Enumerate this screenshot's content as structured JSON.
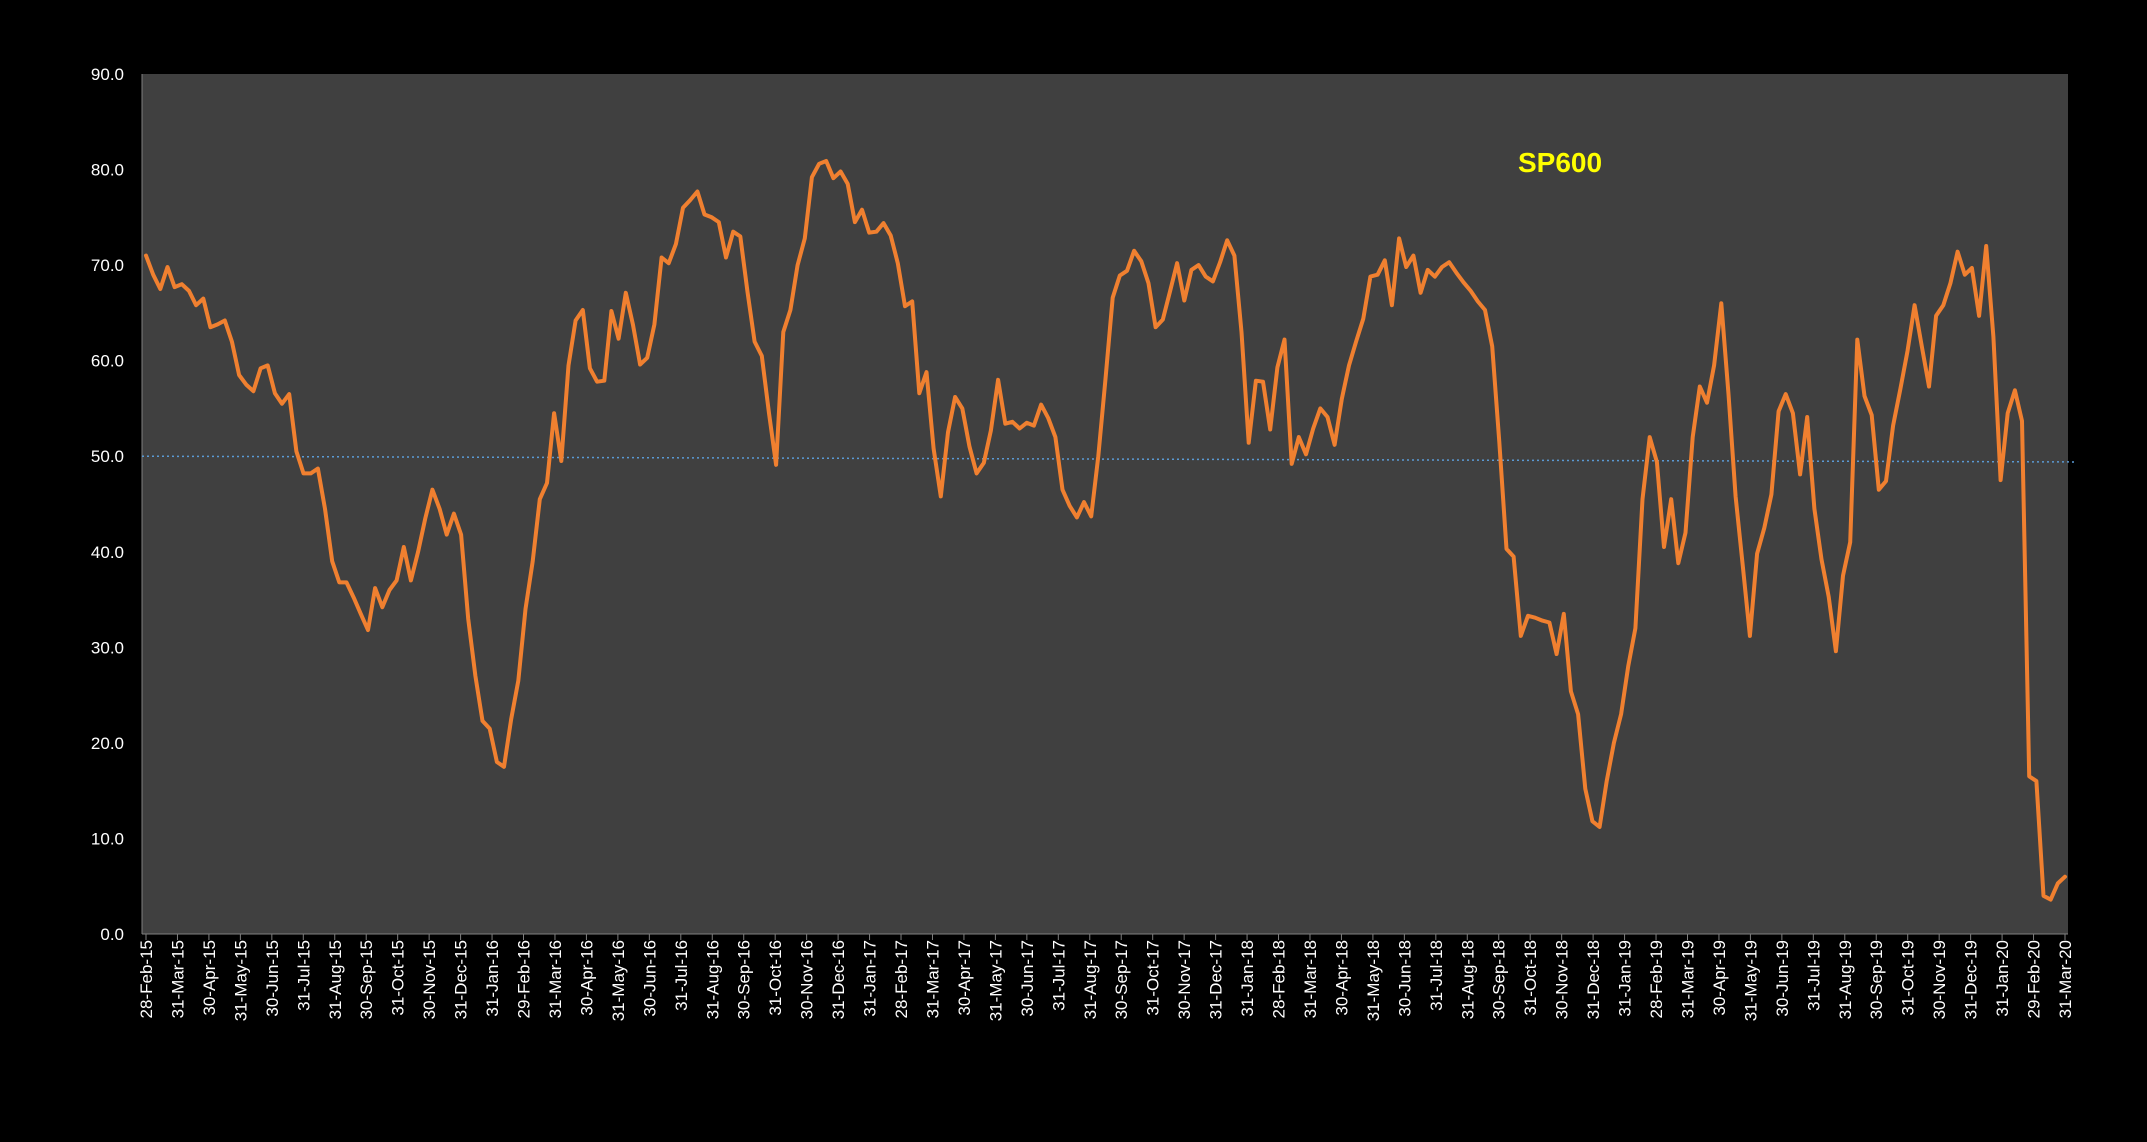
{
  "colors": {
    "page_background": "#000000",
    "plot_background": "#404040",
    "series_line": "#f08030",
    "reference_line": "#5b9bd5",
    "tick_text": "#ffffff",
    "title_text": "#ffff00"
  },
  "chart_data": {
    "type": "line",
    "title": "SP600",
    "xlabel": "",
    "ylabel": "",
    "ylim": [
      0,
      90
    ],
    "y_ticks": [
      "0.0",
      "10.0",
      "20.0",
      "30.0",
      "40.0",
      "50.0",
      "60.0",
      "70.0",
      "80.0",
      "90.0"
    ],
    "grid": false,
    "legend": "none",
    "x_tick_labels": [
      "28-Feb-15",
      "31-Mar-15",
      "30-Apr-15",
      "31-May-15",
      "30-Jun-15",
      "31-Jul-15",
      "31-Aug-15",
      "30-Sep-15",
      "31-Oct-15",
      "30-Nov-15",
      "31-Dec-15",
      "31-Jan-16",
      "29-Feb-16",
      "31-Mar-16",
      "30-Apr-16",
      "31-May-16",
      "30-Jun-16",
      "31-Jul-16",
      "31-Aug-16",
      "30-Sep-16",
      "31-Oct-16",
      "30-Nov-16",
      "31-Dec-16",
      "31-Jan-17",
      "28-Feb-17",
      "31-Mar-17",
      "30-Apr-17",
      "31-May-17",
      "30-Jun-17",
      "31-Jul-17",
      "31-Aug-17",
      "30-Sep-17",
      "31-Oct-17",
      "30-Nov-17",
      "31-Dec-17",
      "31-Jan-18",
      "28-Feb-18",
      "31-Mar-18",
      "30-Apr-18",
      "31-May-18",
      "30-Jun-18",
      "31-Jul-18",
      "31-Aug-18",
      "30-Sep-18",
      "31-Oct-18",
      "30-Nov-18",
      "31-Dec-18",
      "31-Jan-19",
      "28-Feb-19",
      "31-Mar-19",
      "30-Apr-19",
      "31-May-19",
      "30-Jun-19",
      "31-Jul-19",
      "31-Aug-19",
      "30-Sep-19",
      "31-Oct-19",
      "30-Nov-19",
      "31-Dec-19",
      "31-Jan-20",
      "29-Feb-20",
      "31-Mar-20"
    ],
    "reference_line": {
      "y_start": 50.0,
      "y_end": 49.4
    },
    "series": [
      {
        "values": [
          71.0,
          69.0,
          67.5,
          69.8,
          67.7,
          68.0,
          67.3,
          65.8,
          66.5,
          63.5,
          63.8,
          64.2,
          62.0,
          58.5,
          57.5,
          56.8,
          59.2,
          59.5,
          56.6,
          55.5,
          56.5,
          50.5,
          48.2,
          48.2,
          48.7,
          44.5,
          39.0,
          36.8,
          36.8,
          35.2,
          33.5,
          31.8,
          36.2,
          34.2,
          36.0,
          37.0,
          40.5,
          37.0,
          40.0,
          43.5,
          46.5,
          44.5,
          41.8,
          44.0,
          41.8,
          33.0,
          27.0,
          22.3,
          21.5,
          18.0,
          17.5,
          22.5,
          26.5,
          34.0,
          39.0,
          45.5,
          47.2,
          54.5,
          49.5,
          59.5,
          64.2,
          65.3,
          59.2,
          57.8,
          57.9,
          65.2,
          62.3,
          67.1,
          63.8,
          59.6,
          60.3,
          63.8,
          70.8,
          70.2,
          72.2,
          76.0,
          76.8,
          77.7,
          75.3,
          75.0,
          74.5,
          70.8,
          73.5,
          73.0,
          67.2,
          62.0,
          60.5,
          54.5,
          49.1,
          63.0,
          65.3,
          70.0,
          72.8,
          79.2,
          80.6,
          80.9,
          79.1,
          79.8,
          78.5,
          74.5,
          75.8,
          73.4,
          73.5,
          74.4,
          73.1,
          70.2,
          65.7,
          66.2,
          56.6,
          58.8,
          50.8,
          45.8,
          52.5,
          56.2,
          55.0,
          51.0,
          48.2,
          49.3,
          52.7,
          58.0,
          53.4,
          53.6,
          52.9,
          53.5,
          53.2,
          55.4,
          54.0,
          52.0,
          46.5,
          44.8,
          43.6,
          45.2,
          43.7,
          50.0,
          58.1,
          66.6,
          68.9,
          69.4,
          71.5,
          70.4,
          68.1,
          63.5,
          64.3,
          67.2,
          70.2,
          66.3,
          69.5,
          70.0,
          68.8,
          68.3,
          70.3,
          72.6,
          71.0,
          63.0,
          51.4,
          57.9,
          57.8,
          52.8,
          59.3,
          62.2,
          49.2,
          52.0,
          50.2,
          52.9,
          55.0,
          54.1,
          51.2,
          56.0,
          59.5,
          62.0,
          64.4,
          68.8,
          69.0,
          70.5,
          65.8,
          72.8,
          69.8,
          71.0,
          67.1,
          69.5,
          68.8,
          69.8,
          70.3,
          69.2,
          68.2,
          67.3,
          66.2,
          65.3,
          61.5,
          51.5,
          40.3,
          39.5,
          31.2,
          33.3,
          33.1,
          32.8,
          32.6,
          29.3,
          33.5,
          25.4,
          23.0,
          15.2,
          11.8,
          11.2,
          16.0,
          20.0,
          23.0,
          28.0,
          32.0,
          45.5,
          52.0,
          49.4,
          40.5,
          45.5,
          38.8,
          42.0,
          52.0,
          57.3,
          55.6,
          59.5,
          66.0,
          56.5,
          45.8,
          38.5,
          31.2,
          39.8,
          42.5,
          46.0,
          54.7,
          56.5,
          54.5,
          48.1,
          54.1,
          44.5,
          39.2,
          35.3,
          29.6,
          37.5,
          41.0,
          62.2,
          56.3,
          54.3,
          46.5,
          47.4,
          53.2,
          57.0,
          61.0,
          65.8,
          61.5,
          57.3,
          64.7,
          65.8,
          68.1,
          71.4,
          69.0,
          69.7,
          64.7,
          72.0,
          62.5,
          47.5,
          54.5,
          56.9,
          53.7,
          16.5,
          16.0,
          4.0,
          3.6,
          5.3,
          6.0
        ]
      }
    ]
  }
}
